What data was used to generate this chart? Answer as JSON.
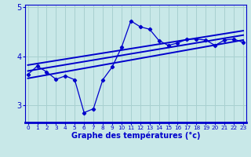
{
  "xlabel": "Graphe des températures (°c)",
  "bg_color": "#c8e8e8",
  "line_color": "#0000cc",
  "grid_color": "#a8d0d0",
  "x_data": [
    0,
    1,
    2,
    3,
    4,
    5,
    6,
    7,
    8,
    9,
    10,
    11,
    12,
    13,
    14,
    15,
    16,
    17,
    18,
    19,
    20,
    21,
    22,
    23
  ],
  "y_data": [
    3.63,
    3.8,
    3.68,
    3.53,
    3.6,
    3.52,
    2.85,
    2.93,
    3.52,
    3.78,
    4.18,
    4.72,
    4.6,
    4.55,
    4.32,
    4.22,
    4.27,
    4.35,
    4.35,
    4.33,
    4.22,
    4.33,
    4.35,
    4.28
  ],
  "trend_upper_start": 3.82,
  "trend_upper_end": 4.52,
  "trend_middle_start": 3.7,
  "trend_middle_end": 4.43,
  "trend_lower_start": 3.55,
  "trend_lower_end": 4.33,
  "ylim_min": 2.65,
  "ylim_max": 5.05,
  "xlim_min": -0.3,
  "xlim_max": 23.3,
  "yticks": [
    3,
    4,
    5
  ],
  "xticks": [
    0,
    1,
    2,
    3,
    4,
    5,
    6,
    7,
    8,
    9,
    10,
    11,
    12,
    13,
    14,
    15,
    16,
    17,
    18,
    19,
    20,
    21,
    22,
    23
  ],
  "xtick_labels": [
    "0",
    "1",
    "2",
    "3",
    "4",
    "5",
    "6",
    "7",
    "8",
    "9",
    "10",
    "11",
    "12",
    "13",
    "14",
    "15",
    "16",
    "17",
    "18",
    "19",
    "20",
    "21",
    "22",
    "23"
  ]
}
